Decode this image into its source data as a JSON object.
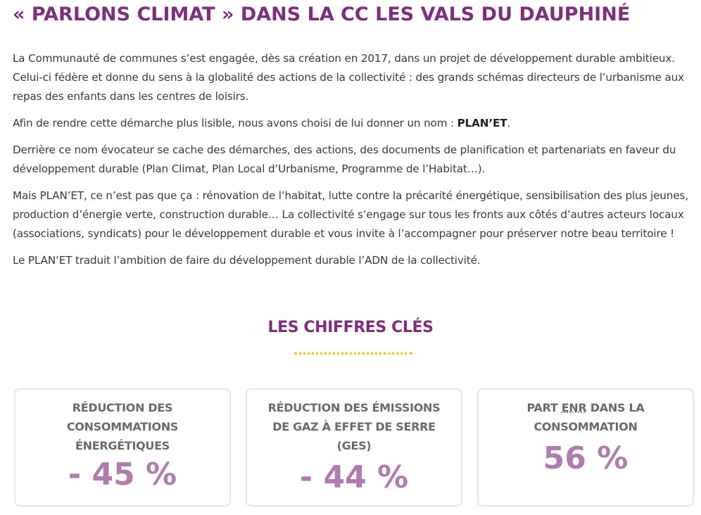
{
  "page": {
    "title": "« PARLONS CLIMAT » DANS LA CC LES VALS DU DAUPHINÉ"
  },
  "intro": {
    "paragraphs": [
      "La Communauté de communes s’est engagée, dès sa création en 2017, dans un projet de développement durable ambitieux. Celui-ci fédère et donne du sens à la globalité des actions de la collectivité : des grands schémas directeurs de l’urbanisme aux repas des enfants dans les centres de loisirs.",
      "Afin de rendre cette démarche plus lisible, nous avons choisi de lui donner un nom :",
      "Derrière ce nom évocateur se cache des démarches, des actions, des documents de planification et partenariats en faveur du développement durable (Plan Climat, Plan Local d’Urbanisme, Programme de l’Habitat…).",
      "Mais PLAN’ET, ce n’est pas que ça : rénovation de l’habitat, lutte contre la précarité énergétique, sensibilisation des plus jeunes, production d’énergie verte, construction durable… La collectivité s’engage sur tous les fronts aux côtés d’autres acteurs locaux (associations, syndicats) pour le développement durable et vous invite à l’accompagner pour préserver notre beau territoire !",
      "Le PLAN’ET traduit l’ambition de faire du développement durable l’ADN de la collectivité."
    ],
    "name_highlight": "PLAN’ET",
    "name_suffix": "."
  },
  "key_figures": {
    "title": "LES CHIFFRES CLÉS",
    "divider_color": "#f2c200",
    "cards": [
      {
        "label": "RÉDUCTION DES CONSOMMATIONS ÉNERGÉTIQUES",
        "value": "- 45 %"
      },
      {
        "label": "RÉDUCTION DES ÉMISSIONS DE GAZ À EFFET DE SERRE (GES)",
        "value": "- 44 %"
      },
      {
        "label_prefix": "PART ",
        "label_abbr": "ENR",
        "label_suffix": " DANS LA CONSOMMATION",
        "value": "56 %"
      }
    ]
  },
  "colors": {
    "title": "#7d2e7c",
    "figure_value": "#b07cae",
    "body_text": "#3a3a3a"
  }
}
